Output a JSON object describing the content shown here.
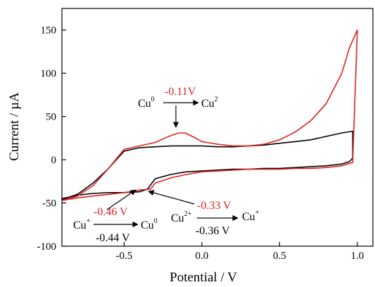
{
  "chart_data": {
    "type": "line",
    "xlabel": "Potential / V",
    "ylabel": "Current / µA",
    "xlim": [
      -0.9,
      1.1
    ],
    "ylim": [
      -100,
      175
    ],
    "xticks": [
      -0.5,
      0.0,
      0.5,
      1.0
    ],
    "xtick_labels": [
      "-0.5",
      "0.0",
      "0.5",
      "1.0"
    ],
    "yticks": [
      -100,
      -50,
      0,
      50,
      100,
      150
    ],
    "ytick_labels": [
      "-100",
      "-50",
      "0",
      "50",
      "100",
      "150"
    ],
    "grid": false,
    "colors": {
      "series_a": "#000000",
      "series_b": "#e02020",
      "annotation_red": "#e02020"
    },
    "series": [
      {
        "color": "#000000",
        "x": [
          -0.9,
          -0.8,
          -0.7,
          -0.6,
          -0.5,
          -0.4,
          -0.3,
          -0.2,
          -0.1,
          0.0,
          0.1,
          0.2,
          0.3,
          0.4,
          0.5,
          0.6,
          0.7,
          0.8,
          0.9,
          0.97,
          0.97,
          0.95,
          0.9,
          0.8,
          0.7,
          0.6,
          0.5,
          0.4,
          0.3,
          0.2,
          0.1,
          0.0,
          -0.1,
          -0.2,
          -0.3,
          -0.35,
          -0.4,
          -0.5,
          -0.6,
          -0.7,
          -0.8,
          -0.9
        ],
        "y": [
          -46,
          -40,
          -27,
          -10,
          10,
          14,
          15,
          16,
          16,
          16,
          15,
          15,
          16,
          17,
          19,
          21,
          23,
          27,
          31,
          33,
          2,
          -2,
          -5,
          -7,
          -8,
          -9,
          -10,
          -10,
          -11,
          -11,
          -12,
          -13,
          -14,
          -17,
          -22,
          -34,
          -37,
          -38,
          -38,
          -39,
          -41,
          -45
        ]
      },
      {
        "color": "#e02020",
        "x": [
          -0.9,
          -0.8,
          -0.7,
          -0.6,
          -0.5,
          -0.45,
          -0.4,
          -0.3,
          -0.2,
          -0.15,
          -0.11,
          -0.05,
          0.0,
          0.1,
          0.2,
          0.3,
          0.4,
          0.5,
          0.6,
          0.7,
          0.8,
          0.9,
          0.95,
          1.0,
          0.97,
          0.9,
          0.8,
          0.7,
          0.6,
          0.5,
          0.4,
          0.3,
          0.2,
          0.1,
          0.0,
          -0.1,
          -0.2,
          -0.3,
          -0.33,
          -0.4,
          -0.46,
          -0.5,
          -0.6,
          -0.7,
          -0.8,
          -0.9
        ],
        "y": [
          -47,
          -42,
          -30,
          -10,
          12,
          14,
          16,
          20,
          28,
          31,
          31,
          26,
          21,
          18,
          16,
          16,
          18,
          23,
          32,
          45,
          65,
          100,
          130,
          150,
          -3,
          -7,
          -9,
          -10,
          -10,
          -11,
          -11,
          -11,
          -12,
          -13,
          -14,
          -17,
          -21,
          -27,
          -34,
          -35,
          -37,
          -38,
          -40,
          -42,
          -44,
          -47
        ]
      }
    ],
    "annotations": {
      "ox1": {
        "species_from": "Cu",
        "sup_from": "0",
        "species_to": "Cu",
        "sup_to": "2",
        "potential": "-0.11V"
      },
      "red1": {
        "species_from": "Cu",
        "sup_from": "+",
        "species_to": "Cu",
        "sup_to": "0",
        "potential_red": "-0.46 V",
        "potential_black": "-0.44 V"
      },
      "red2": {
        "species_from": "Cu",
        "sup_from": "2+",
        "species_to": "Cu",
        "sup_to": "+",
        "potential_red": "-0.33 V",
        "potential_black": "-0.36 V"
      }
    }
  }
}
